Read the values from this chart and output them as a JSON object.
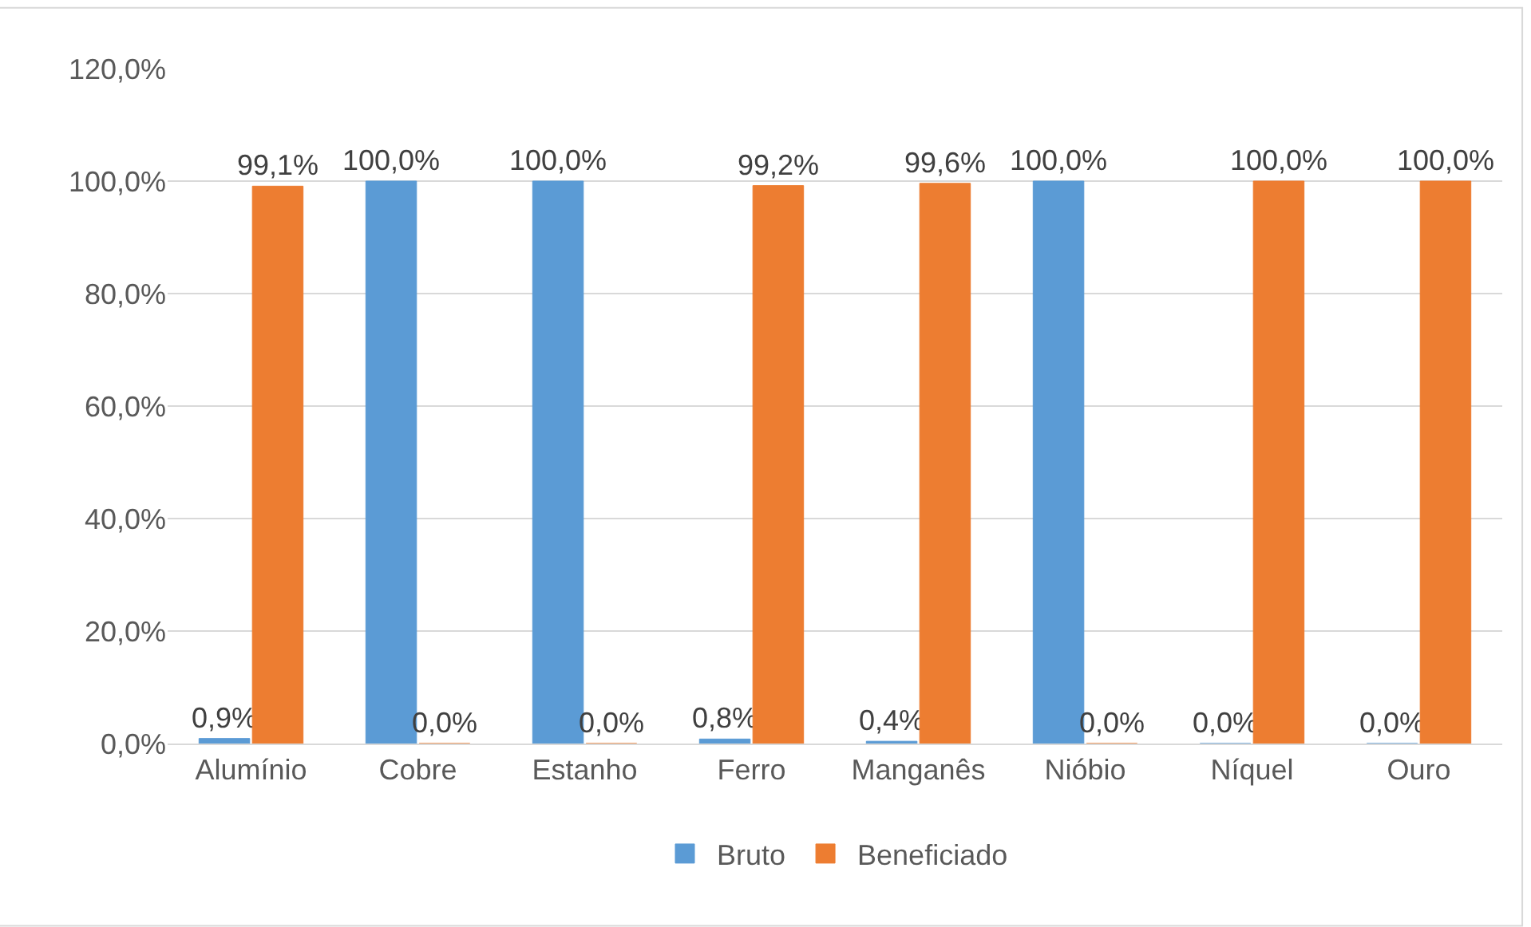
{
  "chart_data": {
    "type": "bar",
    "categories": [
      "Alumínio",
      "Cobre",
      "Estanho",
      "Ferro",
      "Manganês",
      "Nióbio",
      "Níquel",
      "Ouro"
    ],
    "series": [
      {
        "name": "Bruto",
        "color": "#5b9bd5",
        "values": [
          0.9,
          100,
          100,
          0.8,
          0.4,
          100,
          0,
          0
        ],
        "value_labels": [
          "0,9%",
          "100,0%",
          "100,0%",
          "0,8%",
          "0,4%",
          "100,0%",
          "0,0%",
          "0,0%"
        ]
      },
      {
        "name": "Beneficiado",
        "color": "#ed7d31",
        "values": [
          99.1,
          0,
          0,
          99.2,
          99.6,
          0,
          100,
          100
        ],
        "value_labels": [
          "99,1%",
          "0,0%",
          "0,0%",
          "99,2%",
          "99,6%",
          "0,0%",
          "100,0%",
          "100,0%"
        ]
      }
    ],
    "ylim": [
      0,
      120
    ],
    "yticks": [
      {
        "value": 0,
        "label": "0,0%"
      },
      {
        "value": 20,
        "label": "20,0%"
      },
      {
        "value": 40,
        "label": "40,0%"
      },
      {
        "value": 60,
        "label": "60,0%"
      },
      {
        "value": 80,
        "label": "80,0%"
      },
      {
        "value": 100,
        "label": "100,0%"
      },
      {
        "value": 120,
        "label": "120,0%"
      }
    ],
    "grid": "y",
    "legend": "bottom"
  }
}
